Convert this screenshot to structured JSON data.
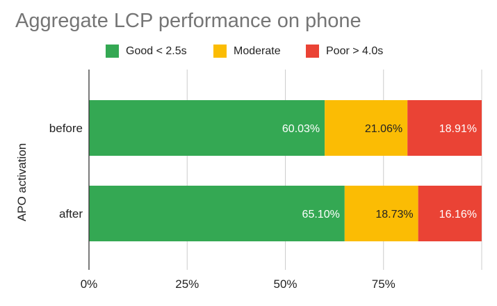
{
  "chart_data": {
    "type": "bar",
    "orientation": "horizontal",
    "stacked": "percent",
    "title": "Aggregate LCP performance on phone",
    "ylabel": "APO activation",
    "xlabel": "",
    "categories": [
      "before",
      "after"
    ],
    "series": [
      {
        "name": "Good < 2.5s",
        "color": "#34a853",
        "values": [
          60.03,
          65.1
        ],
        "labels": [
          "60.03%",
          "65.10%"
        ],
        "label_color": "#ffffff"
      },
      {
        "name": "Moderate",
        "color": "#fbbc04",
        "values": [
          21.06,
          18.73
        ],
        "labels": [
          "21.06%",
          "18.73%"
        ],
        "label_color": "#222222"
      },
      {
        "name": "Poor > 4.0s",
        "color": "#ea4335",
        "values": [
          18.91,
          16.16
        ],
        "labels": [
          "18.91%",
          "16.16%"
        ],
        "label_color": "#ffffff"
      }
    ],
    "xlim": [
      0,
      100
    ],
    "x_ticks": [
      0,
      25,
      50,
      75,
      100
    ],
    "x_tick_labels": [
      "0%",
      "25%",
      "50%",
      "75%",
      ""
    ],
    "grid": "vertical",
    "legend_position": "top"
  }
}
